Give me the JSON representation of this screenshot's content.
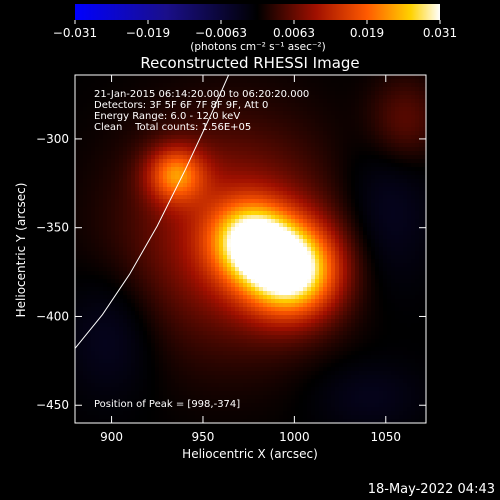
{
  "chart_data": {
    "type": "heatmap",
    "title": "Reconstructed RHESSI Image",
    "xlabel": "Heliocentric X (arcsec)",
    "ylabel": "Heliocentric Y (arcsec)",
    "xlim": [
      880,
      1072
    ],
    "ylim": [
      -460,
      -264
    ],
    "x_ticks": [
      900,
      950,
      1000,
      1050
    ],
    "y_ticks": [
      -300,
      -350,
      -400,
      -450
    ],
    "colorbar": {
      "range": [
        -0.031,
        0.031
      ],
      "ticks": [
        "-0.031",
        "-0.019",
        "-0.0063",
        "0.0063",
        "0.019",
        "0.031"
      ],
      "unit_text": "(photons cm⁻² s⁻¹ asec⁻²)",
      "colormap": "hot-with-blue-negatives"
    },
    "annotations": [
      "21-Jan-2015 06:14:20.000 to 06:20:20.000",
      "Detectors: 3F 5F 6F 7F 8F 9F, Att 0",
      "Energy Range: 6.0 - 12.0 keV",
      "Clean    Total counts: 1.56E+05"
    ],
    "peak_label": "Position of Peak = [998,-374]",
    "peak": [
      998,
      -374
    ],
    "sources": [
      {
        "x": 998,
        "y": -374,
        "amplitude": 0.031
      },
      {
        "x": 976,
        "y": -357,
        "amplitude": 0.022
      },
      {
        "x": 935,
        "y": -320,
        "amplitude": 0.017
      }
    ],
    "limb_curve": [
      [
        880,
        -418
      ],
      [
        895,
        -399
      ],
      [
        910,
        -376
      ],
      [
        925,
        -349
      ],
      [
        940,
        -318
      ],
      [
        955,
        -285
      ],
      [
        964,
        -264
      ]
    ],
    "grid": false
  },
  "timestamp": "18-May-2022 04:43"
}
